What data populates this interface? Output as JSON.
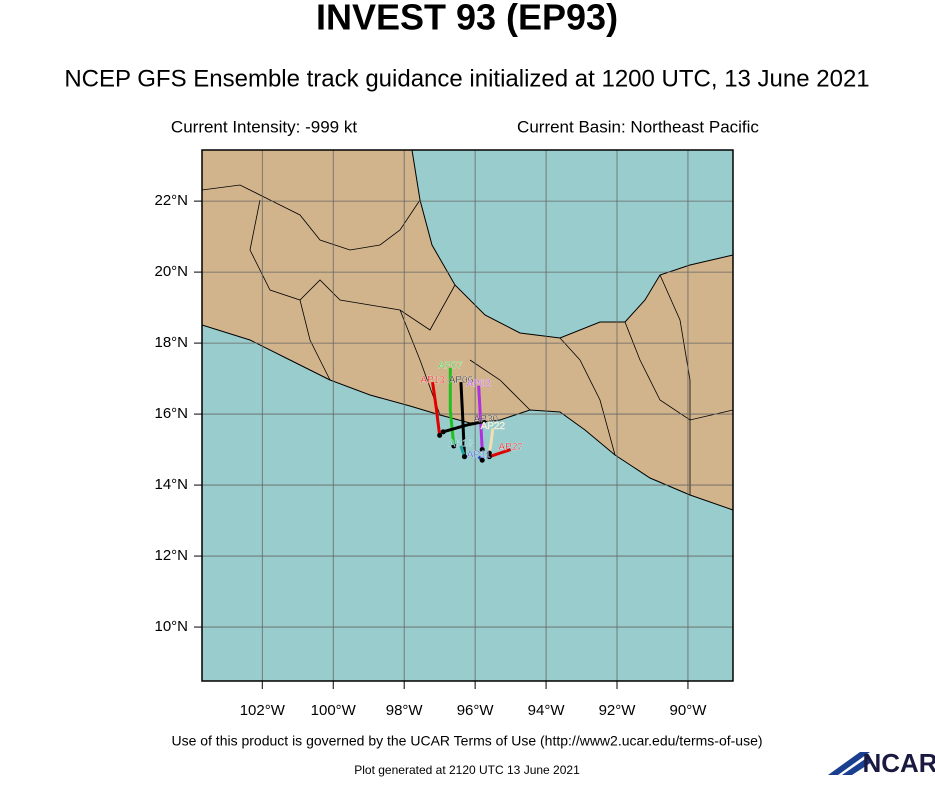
{
  "header": {
    "title": "INVEST 93 (EP93)",
    "subtitle": "NCEP GFS Ensemble track guidance initialized at 1200 UTC, 13 June 2021",
    "intensity": "Current Intensity: -999 kt",
    "basin": "Current Basin: Northeast Pacific"
  },
  "map": {
    "xlim": [
      -103.7,
      -88.73
    ],
    "ylim": [
      8.48,
      23.44
    ],
    "xticks": [
      {
        "value": -102,
        "label": "102°W"
      },
      {
        "value": -100,
        "label": "100°W"
      },
      {
        "value": -98,
        "label": "98°W"
      },
      {
        "value": -96,
        "label": "96°W"
      },
      {
        "value": -94,
        "label": "94°W"
      },
      {
        "value": -92,
        "label": "92°W"
      },
      {
        "value": -90,
        "label": "90°W"
      }
    ],
    "yticks": [
      {
        "value": 10,
        "label": "10°N"
      },
      {
        "value": 12,
        "label": "12°N"
      },
      {
        "value": 14,
        "label": "14°N"
      },
      {
        "value": 16,
        "label": "16°N"
      },
      {
        "value": 18,
        "label": "18°N"
      },
      {
        "value": 20,
        "label": "20°N"
      },
      {
        "value": 22,
        "label": "22°N"
      }
    ],
    "tracks": [
      {
        "name": "AP13",
        "color": "#e00000",
        "lon": [
          -97.0,
          -97.1,
          -97.2
        ],
        "lat": [
          15.4,
          16.2,
          16.9
        ]
      },
      {
        "name": "AP07",
        "color": "#20c020",
        "lon": [
          -96.6,
          -96.7,
          -96.7
        ],
        "lat": [
          15.1,
          16.1,
          17.3
        ]
      },
      {
        "name": "AP06",
        "color": "#000000",
        "lon": [
          -96.3,
          -96.35,
          -96.4
        ],
        "lat": [
          14.8,
          15.9,
          16.9
        ]
      },
      {
        "name": "AP02",
        "color": "#b030e0",
        "lon": [
          -95.8,
          -95.85,
          -95.9
        ],
        "lat": [
          15.0,
          15.9,
          16.8
        ]
      },
      {
        "name": "AP30",
        "color": "#000000",
        "lon": [
          -96.9,
          -96.2,
          -95.7
        ],
        "lat": [
          15.5,
          15.7,
          15.8
        ]
      },
      {
        "name": "AP22",
        "color": "#f0e0b0",
        "lon": [
          -95.6,
          -95.55,
          -95.5
        ],
        "lat": [
          14.9,
          15.2,
          15.6
        ]
      },
      {
        "name": "AP27",
        "color": "#e00000",
        "lon": [
          -95.6,
          -95.3,
          -95.0
        ],
        "lat": [
          14.8,
          14.9,
          15.0
        ]
      },
      {
        "name": "AP11",
        "color": "#2040c0",
        "lon": [
          -95.8,
          -95.85,
          -95.9
        ],
        "lat": [
          14.7,
          14.75,
          14.8
        ]
      },
      {
        "name": "AP18",
        "color": "#20a0a0",
        "lon": [
          -96.3,
          -96.35,
          -96.4
        ],
        "lat": [
          14.8,
          14.95,
          15.1
        ]
      }
    ]
  },
  "footer": {
    "terms": "Use of this product is governed by the UCAR Terms of Use (http://www2.ucar.edu/terms-of-use)",
    "generated": "Plot generated at 2120 UTC   13 June 2021",
    "logo": "NCAR"
  }
}
